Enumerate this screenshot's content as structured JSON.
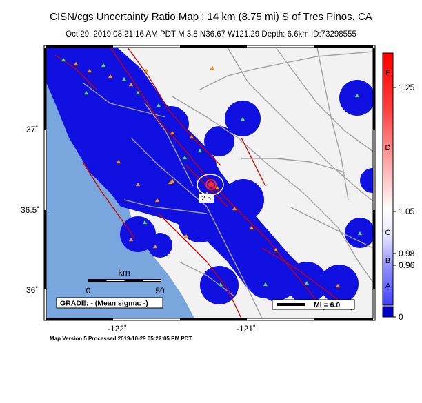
{
  "header": {
    "title": "CISN/cgs Uncertainty Ratio Map : 14 km (8.75 mi) S of Tres Pinos, CA",
    "subtitle": "Oct 29, 2019 08:21:16 AM PDT   M 3.8   N36.67 W121.29   Depth: 6.6km   ID:73298555"
  },
  "map": {
    "lat_labels": [
      "37˚",
      "36.5˚",
      "36˚"
    ],
    "lon_labels": [
      "-122˚",
      "-121˚"
    ],
    "contour_label": "2.5",
    "scalebar": {
      "unit": "km",
      "tick_left": "0",
      "tick_right": "50"
    },
    "grade": "GRADE: - (Mean sigma: -)",
    "mi_label": "MI = 6.0"
  },
  "colorbar": {
    "letters": [
      "F",
      "D",
      "C",
      "B",
      "A"
    ],
    "values": [
      "1.25",
      "1.05",
      "0.98",
      "0.96",
      "0"
    ]
  },
  "footer": "Map Version 5 Processed 2019-10-29 05:22:05 PM PDT",
  "colors": {
    "ocean": "#79a6dc",
    "land": "#f2f2f2",
    "uncertainty_blue": "#1010e0",
    "fault": "#cc0000",
    "road": "#a0a0a0"
  }
}
